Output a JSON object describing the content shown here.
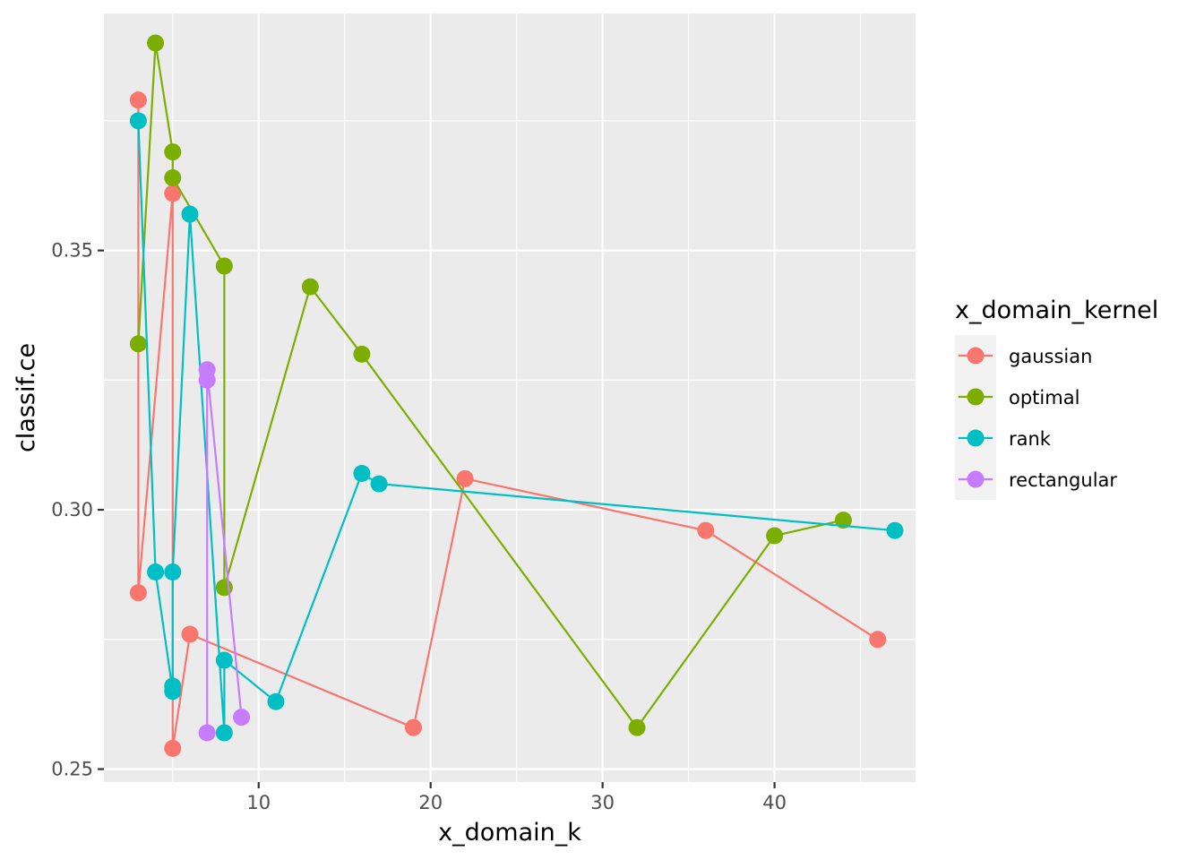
{
  "chart_data": {
    "type": "line",
    "xlabel": "x_domain_k",
    "ylabel": "classif.ce",
    "xlim": [
      1.0,
      48.2
    ],
    "ylim": [
      0.2475,
      0.3957
    ],
    "x_ticks": [
      10,
      20,
      30,
      40
    ],
    "x_tick_labels": [
      "10",
      "20",
      "30",
      "40"
    ],
    "x_minor_ticks": [
      5,
      15,
      25,
      35,
      45
    ],
    "y_ticks": [
      0.25,
      0.3,
      0.35
    ],
    "y_tick_labels": [
      "0.25",
      "0.30",
      "0.35"
    ],
    "y_minor_ticks": [
      0.275,
      0.325,
      0.375
    ],
    "grid": true,
    "legend": {
      "title": "x_domain_kernel",
      "position": "right"
    },
    "series": [
      {
        "name": "gaussian",
        "color": "#F8766D",
        "points": [
          [
            3,
            0.379
          ],
          [
            3,
            0.284
          ],
          [
            5,
            0.361
          ],
          [
            5,
            0.254
          ],
          [
            6,
            0.276
          ],
          [
            19,
            0.258
          ],
          [
            22,
            0.306
          ],
          [
            36,
            0.296
          ],
          [
            46,
            0.275
          ]
        ]
      },
      {
        "name": "optimal",
        "color": "#7CAE00",
        "points": [
          [
            3,
            0.332
          ],
          [
            4,
            0.39
          ],
          [
            5,
            0.369
          ],
          [
            5,
            0.364
          ],
          [
            8,
            0.347
          ],
          [
            8,
            0.285
          ],
          [
            13,
            0.343
          ],
          [
            16,
            0.33
          ],
          [
            32,
            0.258
          ],
          [
            40,
            0.295
          ],
          [
            44,
            0.298
          ]
        ]
      },
      {
        "name": "rank",
        "color": "#00BFC4",
        "points": [
          [
            3,
            0.375
          ],
          [
            4,
            0.288
          ],
          [
            5,
            0.265
          ],
          [
            5,
            0.266
          ],
          [
            5,
            0.288
          ],
          [
            6,
            0.357
          ],
          [
            8,
            0.257
          ],
          [
            8,
            0.271
          ],
          [
            11,
            0.263
          ],
          [
            16,
            0.307
          ],
          [
            17,
            0.305
          ],
          [
            47,
            0.296
          ]
        ]
      },
      {
        "name": "rectangular",
        "color": "#C77CFF",
        "points": [
          [
            7,
            0.257
          ],
          [
            7,
            0.325
          ],
          [
            7,
            0.327
          ],
          [
            9,
            0.26
          ]
        ]
      }
    ]
  }
}
